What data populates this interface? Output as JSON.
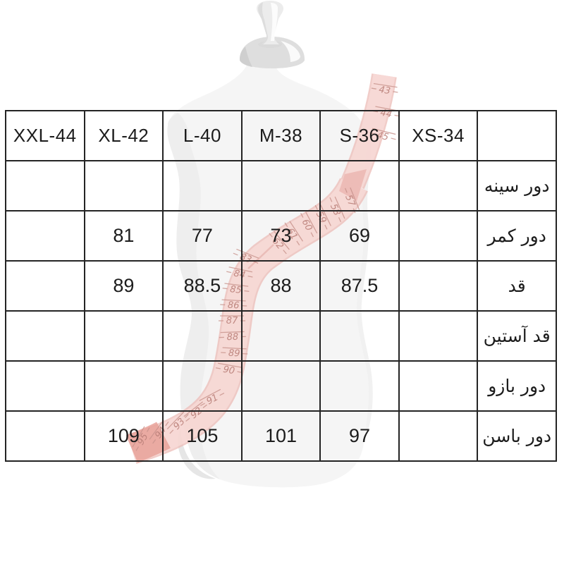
{
  "page": {
    "background": "#ffffff"
  },
  "size_chart": {
    "columns": [
      "XXL-44",
      "XL-42",
      "L-40",
      "M-38",
      "S-36",
      "XS-34",
      ""
    ],
    "rows": [
      {
        "label": "دور سینه",
        "values": [
          "",
          "",
          "",
          "",
          "",
          ""
        ]
      },
      {
        "label": "دور کمر",
        "values": [
          "",
          "81",
          "77",
          "73",
          "69",
          ""
        ]
      },
      {
        "label": "قد",
        "values": [
          "",
          "89",
          "88.5",
          "88",
          "87.5",
          ""
        ]
      },
      {
        "label": "قد آستین",
        "values": [
          "",
          "",
          "",
          "",
          "",
          ""
        ]
      },
      {
        "label": "دور بازو",
        "values": [
          "",
          "",
          "",
          "",
          "",
          ""
        ]
      },
      {
        "label": "دور باسن",
        "values": [
          "",
          "109",
          "105",
          "101",
          "97",
          ""
        ]
      }
    ]
  },
  "illustration": {
    "dress_form_color": "#f5f5f5",
    "tape_color": "#f7d7d3",
    "tape_edge_color": "#ecbcb6",
    "tape_marking_color": "#b5766f",
    "tape_numbers_top": [
      "43",
      "44",
      "45"
    ],
    "tape_numbers_upper_diagonal": [
      "57",
      "58",
      "59",
      "60",
      "61",
      "62"
    ],
    "tape_numbers_vertical": [
      "83",
      "84",
      "85",
      "86",
      "87",
      "88",
      "89",
      "90"
    ],
    "tape_numbers_bottom": [
      "91",
      "92",
      "93",
      "94",
      "95"
    ]
  }
}
